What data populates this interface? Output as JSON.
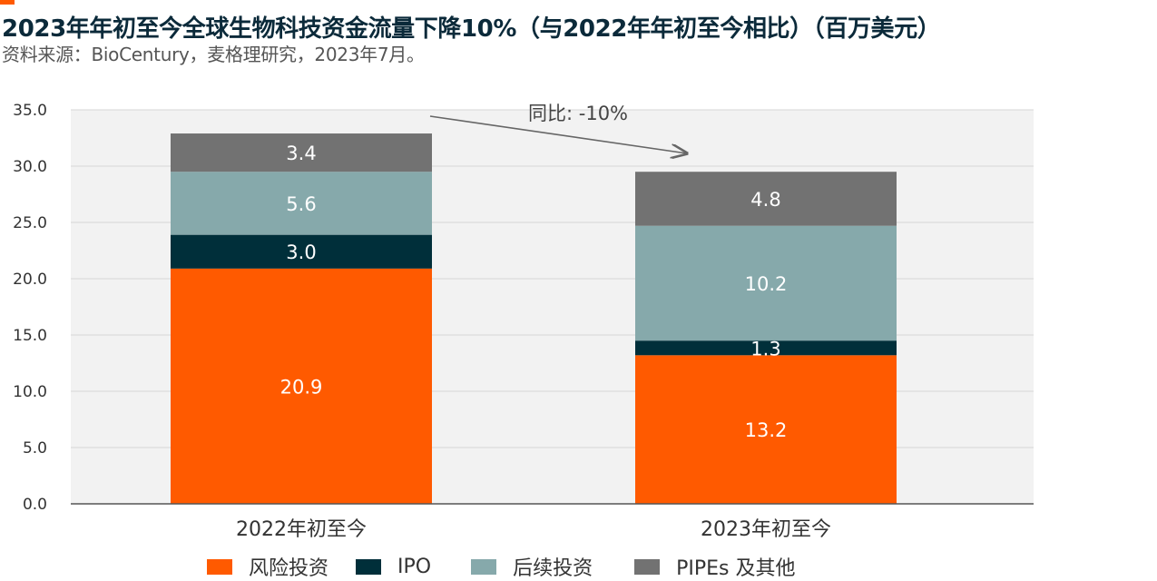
{
  "header": {
    "title": "2023年年初至今全球生物科技资金流量下降10%（与2022年年初至今相比）（百万美元）",
    "subtitle": "资料来源：BioCentury，麦格理研究，2023年7月。"
  },
  "chart_data": {
    "type": "bar",
    "stacked": true,
    "categories": [
      "2022年初至今",
      "2023年初至今"
    ],
    "series": [
      {
        "name": "风险投资",
        "color": "#ff5a00",
        "values": [
          20.9,
          13.2
        ]
      },
      {
        "name": "IPO",
        "color": "#002f3a",
        "values": [
          3.0,
          1.3
        ]
      },
      {
        "name": "后续投资",
        "color": "#86a9ab",
        "values": [
          5.6,
          10.2
        ]
      },
      {
        "name": "PIPEs 及其他",
        "color": "#727272",
        "values": [
          3.4,
          4.8
        ]
      }
    ],
    "value_labels": [
      [
        "20.9",
        "13.2"
      ],
      [
        "3.0",
        "1.3"
      ],
      [
        "5.6",
        "10.2"
      ],
      [
        "3.4",
        "4.8"
      ]
    ],
    "yticks": [
      "0.0",
      "5.0",
      "10.0",
      "15.0",
      "20.0",
      "25.0",
      "30.0",
      "35.0"
    ],
    "ylim": [
      0,
      35
    ],
    "grid": true,
    "legend_position": "bottom",
    "annotation": "同比: -10%"
  }
}
